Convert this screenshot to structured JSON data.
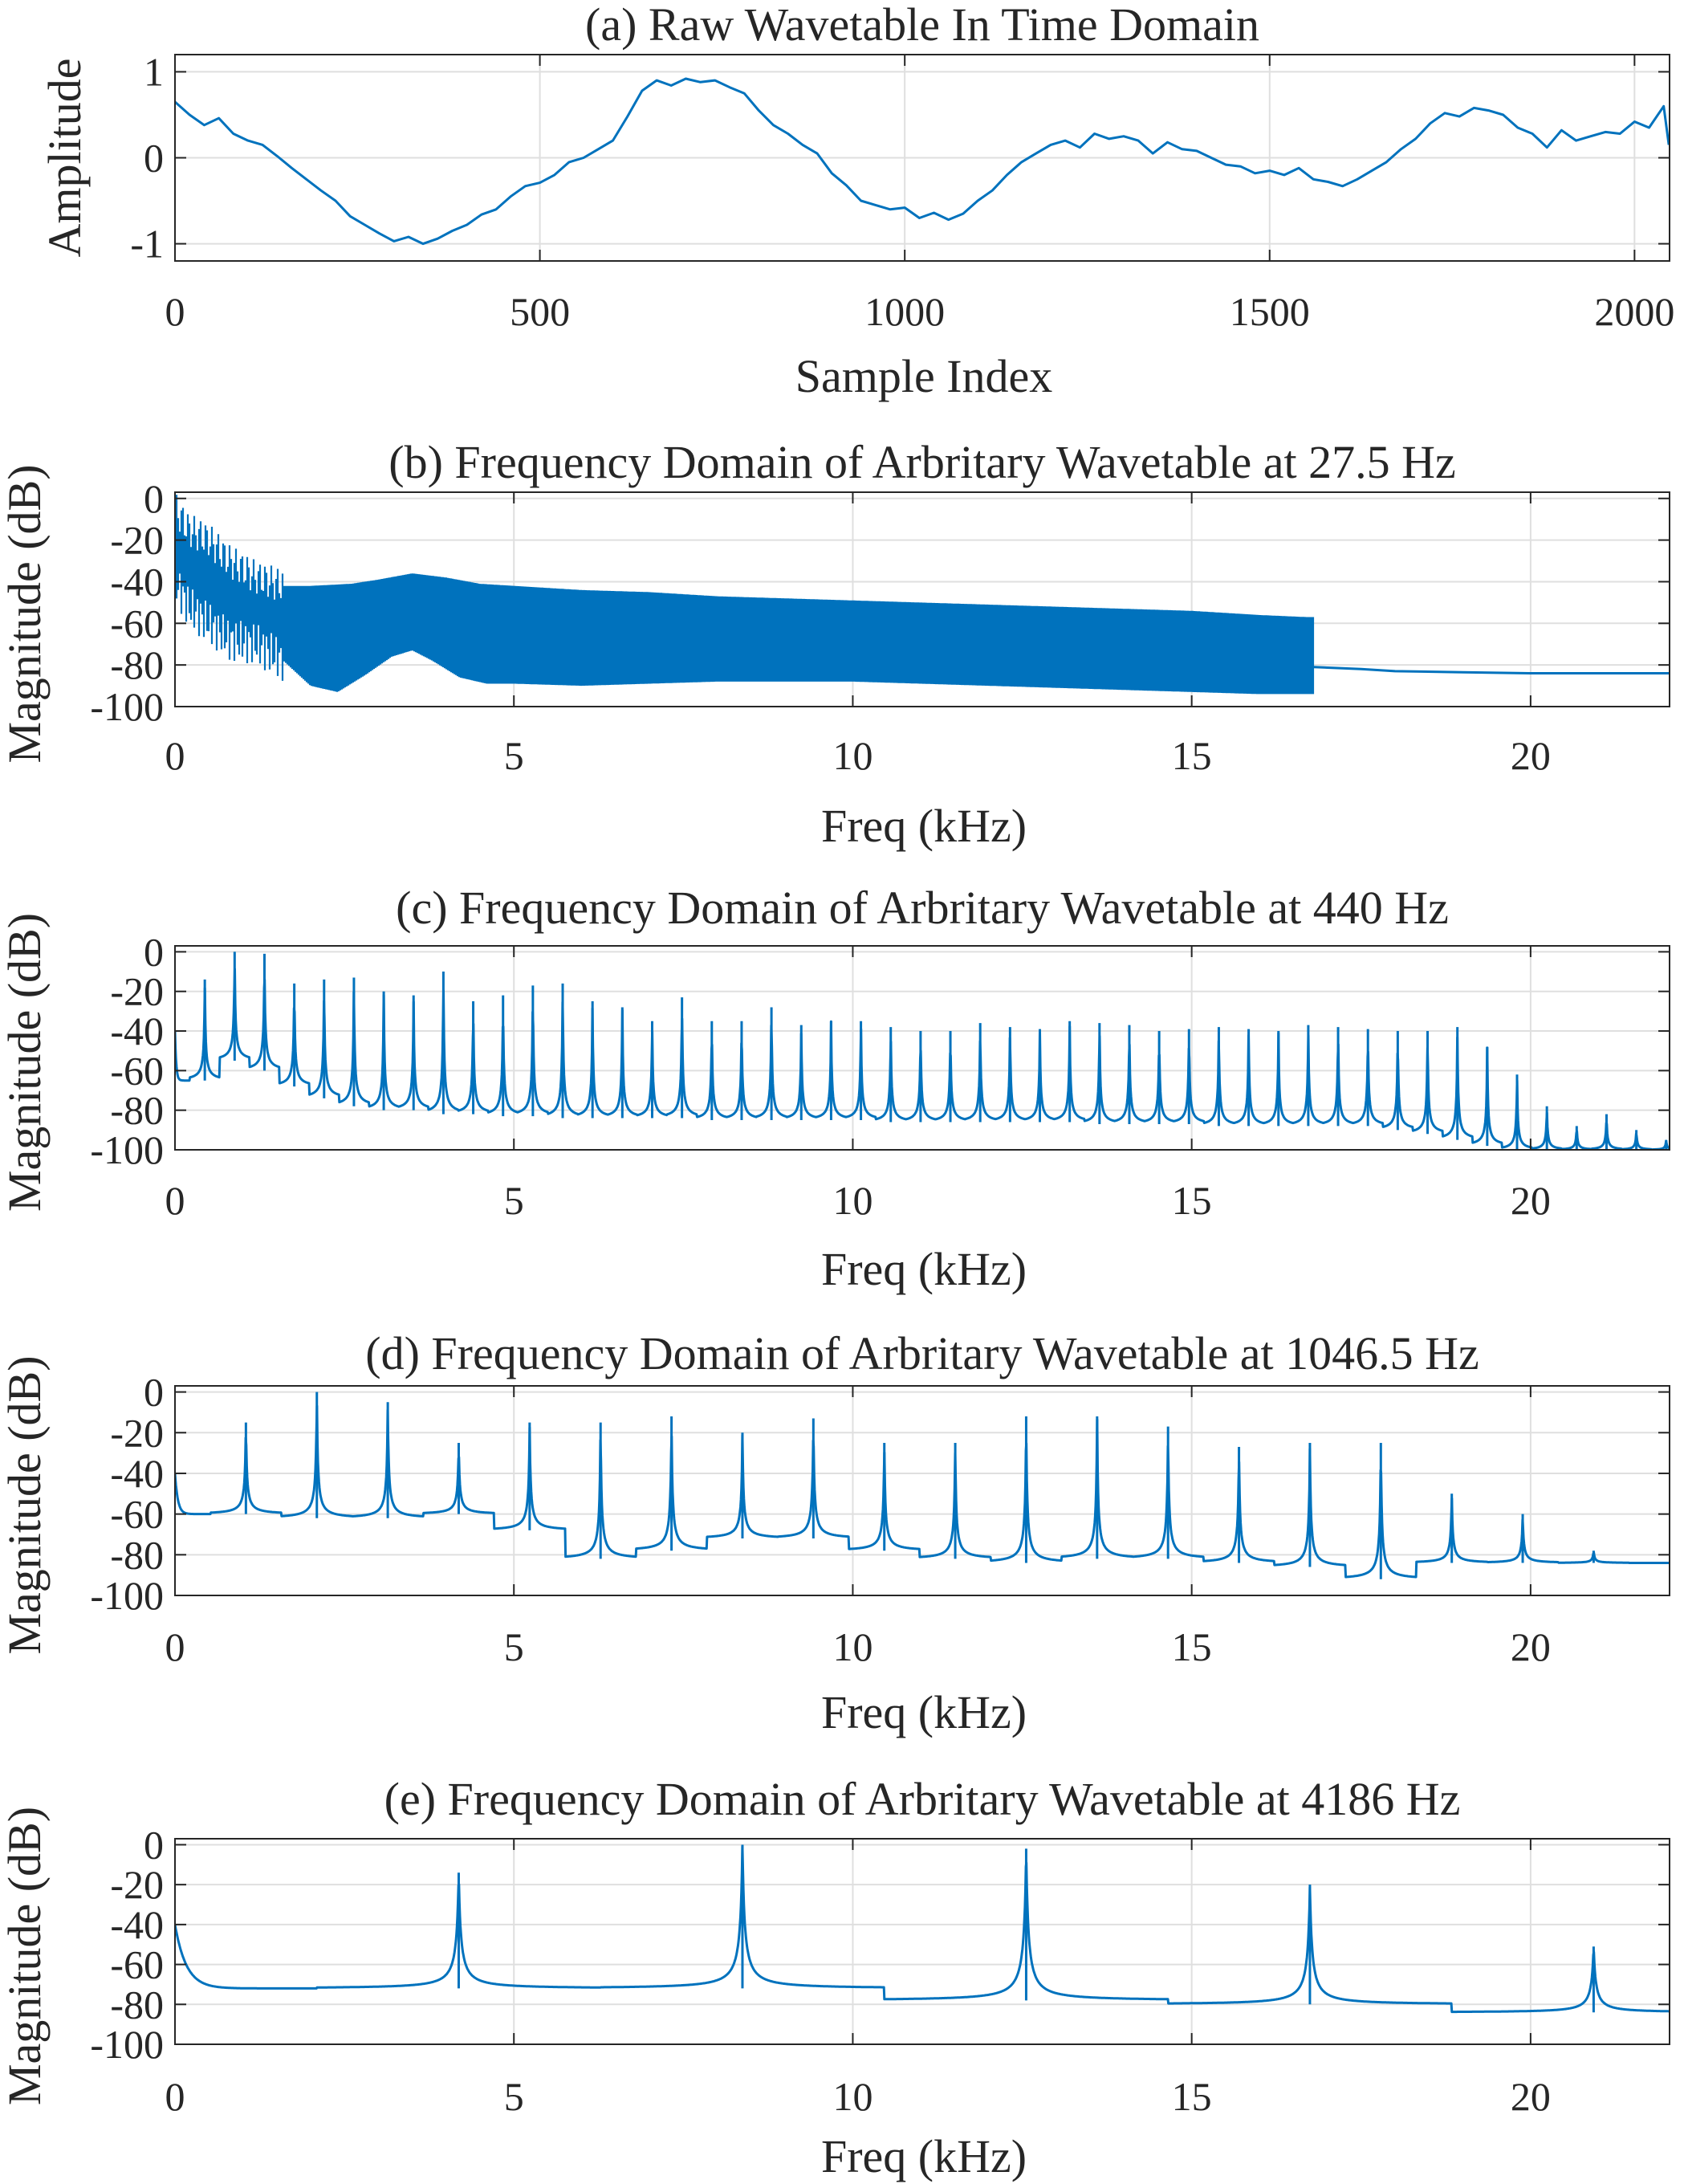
{
  "colors": {
    "series": "#0072BD",
    "axes": "#262626",
    "grid": "#dfdfdf"
  },
  "chart_data": [
    {
      "id": "a",
      "type": "line",
      "title": "(a) Raw Wavetable In Time Domain",
      "xlabel": "Sample Index",
      "ylabel": "Amplitude",
      "xlim": [
        0,
        2048
      ],
      "ylim": [
        -1.2,
        1.2
      ],
      "xticks": [
        0,
        500,
        1000,
        1500,
        2000
      ],
      "yticks": [
        -1,
        0,
        1
      ],
      "ytick_labels": [
        "-1",
        "0",
        "1"
      ],
      "grid": true,
      "x": [
        0,
        20,
        40,
        60,
        80,
        100,
        120,
        140,
        160,
        180,
        200,
        220,
        240,
        260,
        280,
        300,
        320,
        340,
        360,
        380,
        400,
        420,
        440,
        460,
        480,
        500,
        520,
        540,
        560,
        580,
        600,
        620,
        640,
        660,
        680,
        700,
        720,
        740,
        760,
        780,
        800,
        820,
        840,
        860,
        880,
        900,
        920,
        940,
        960,
        980,
        1000,
        1020,
        1040,
        1060,
        1080,
        1100,
        1120,
        1140,
        1160,
        1180,
        1200,
        1220,
        1240,
        1260,
        1280,
        1300,
        1320,
        1340,
        1360,
        1380,
        1400,
        1420,
        1440,
        1460,
        1480,
        1500,
        1520,
        1540,
        1560,
        1580,
        1600,
        1620,
        1640,
        1660,
        1680,
        1700,
        1720,
        1740,
        1760,
        1780,
        1800,
        1820,
        1840,
        1860,
        1880,
        1900,
        1920,
        1940,
        1960,
        1980,
        2000,
        2020,
        2040,
        2047
      ],
      "y": [
        0.65,
        0.5,
        0.38,
        0.46,
        0.28,
        0.2,
        0.15,
        0.02,
        -0.12,
        -0.25,
        -0.38,
        -0.5,
        -0.68,
        -0.78,
        -0.88,
        -0.97,
        -0.92,
        -1.0,
        -0.94,
        -0.85,
        -0.78,
        -0.66,
        -0.6,
        -0.45,
        -0.33,
        -0.29,
        -0.2,
        -0.05,
        0.0,
        0.1,
        0.2,
        0.48,
        0.78,
        0.9,
        0.84,
        0.92,
        0.88,
        0.9,
        0.82,
        0.75,
        0.55,
        0.38,
        0.28,
        0.15,
        0.05,
        -0.18,
        -0.32,
        -0.5,
        -0.55,
        -0.6,
        -0.58,
        -0.7,
        -0.64,
        -0.72,
        -0.65,
        -0.5,
        -0.38,
        -0.2,
        -0.05,
        0.05,
        0.15,
        0.2,
        0.12,
        0.28,
        0.22,
        0.25,
        0.2,
        0.05,
        0.18,
        0.1,
        0.08,
        0.0,
        -0.08,
        -0.1,
        -0.18,
        -0.15,
        -0.2,
        -0.12,
        -0.25,
        -0.28,
        -0.33,
        -0.25,
        -0.15,
        -0.05,
        0.1,
        0.22,
        0.4,
        0.52,
        0.48,
        0.58,
        0.55,
        0.5,
        0.35,
        0.28,
        0.12,
        0.32,
        0.2,
        0.25,
        0.3,
        0.28,
        0.42,
        0.35,
        0.6,
        0.15
      ]
    },
    {
      "id": "b",
      "type": "line",
      "title": "(b) Frequency Domain of Arbritary Wavetable at 27.5 Hz",
      "xlabel": "Freq (kHz)",
      "ylabel": "Magnitude (dB)",
      "xlim": [
        0,
        22.05
      ],
      "ylim": [
        -100,
        3
      ],
      "xticks": [
        0,
        5,
        10,
        15,
        20
      ],
      "yticks": [
        0,
        -20,
        -40,
        -60,
        -80,
        -100
      ],
      "grid": true,
      "fundamental_hz": 27.5,
      "harmonic_limit_khz": 16.8,
      "upper_envelope": {
        "x": [
          0,
          0.2,
          0.5,
          0.8,
          1.2,
          1.6,
          2.0,
          2.6,
          3.0,
          3.5,
          4.0,
          4.5,
          5.0,
          6,
          7,
          8,
          9,
          10,
          11,
          12,
          13,
          14,
          15,
          16,
          16.7
        ],
        "y": [
          -5,
          -15,
          -20,
          -30,
          -38,
          -42,
          -42,
          -41,
          -39,
          -36,
          -38,
          -41,
          -42,
          -44,
          -45,
          -47,
          -48,
          -49,
          -50,
          -51,
          -52,
          -53,
          -54,
          -56,
          -57
        ]
      },
      "lower_envelope": {
        "x": [
          0,
          0.2,
          0.5,
          0.8,
          1.2,
          1.6,
          2.0,
          2.4,
          2.8,
          3.2,
          3.5,
          3.8,
          4.2,
          4.6,
          5.0,
          6,
          7,
          8,
          9,
          10,
          11,
          12,
          13,
          14,
          15,
          16,
          16.7
        ],
        "y": [
          -40,
          -52,
          -60,
          -68,
          -70,
          -78,
          -90,
          -93,
          -85,
          -76,
          -73,
          -78,
          -86,
          -89,
          -89,
          -90,
          -89,
          -88,
          -88,
          -88,
          -89,
          -90,
          -91,
          -92,
          -93,
          -94,
          -94
        ]
      },
      "noise_floor": {
        "x": [
          16.8,
          17.5,
          18,
          19,
          20,
          21,
          22.05
        ],
        "y": [
          -81,
          -82,
          -83,
          -83.5,
          -84,
          -84,
          -84
        ]
      }
    },
    {
      "id": "c",
      "type": "line",
      "title": "(c) Frequency Domain of Arbritary Wavetable at 440 Hz",
      "xlabel": "Freq (kHz)",
      "ylabel": "Magnitude (dB)",
      "xlim": [
        0,
        22.05
      ],
      "ylim": [
        -100,
        3
      ],
      "xticks": [
        0,
        5,
        10,
        15,
        20
      ],
      "yticks": [
        0,
        -20,
        -40,
        -60,
        -80,
        -100
      ],
      "grid": true,
      "fundamental_hz": 440,
      "harmonic_peaks_db": [
        -14,
        0,
        -1,
        -16,
        -14,
        -13,
        -20,
        -22,
        -10,
        -25,
        -22,
        -17,
        -16,
        -25,
        -28,
        -35,
        -23,
        -35,
        -35,
        -28,
        -37,
        -35,
        -35,
        -38,
        -40,
        -40,
        -36,
        -38,
        -39,
        -35,
        -36,
        -37,
        -40,
        -39,
        -38,
        -39,
        -40,
        -37,
        -38,
        -39,
        -40,
        -40,
        -38,
        -48,
        -62,
        -78,
        -88,
        -82,
        -90,
        -95
      ],
      "floor_db": [
        -65,
        -55,
        -60,
        -68,
        -74,
        -78,
        -80,
        -80,
        -82,
        -82,
        -83,
        -83,
        -84,
        -84,
        -84,
        -84,
        -84,
        -85,
        -85,
        -85,
        -85,
        -85,
        -85,
        -86,
        -86,
        -86,
        -86,
        -86,
        -86,
        -86,
        -87,
        -87,
        -87,
        -87,
        -88,
        -88,
        -88,
        -88,
        -88,
        -88,
        -90,
        -92,
        -95,
        -98,
        -100,
        -100,
        -100,
        -100,
        -100,
        -100
      ]
    },
    {
      "id": "d",
      "type": "line",
      "title": "(d) Frequency Domain of Arbritary Wavetable at 1046.5 Hz",
      "xlabel": "Freq (kHz)",
      "ylabel": "Magnitude (dB)",
      "xlim": [
        0,
        22.05
      ],
      "ylim": [
        -100,
        3
      ],
      "xticks": [
        0,
        5,
        10,
        15,
        20
      ],
      "yticks": [
        0,
        -20,
        -40,
        -60,
        -80,
        -100
      ],
      "grid": true,
      "fundamental_hz": 1046.5,
      "harmonic_peaks_db": [
        -15,
        0,
        -5,
        -25,
        -15,
        -15,
        -12,
        -20,
        -13,
        -25,
        -25,
        -12,
        -12,
        -17,
        -27,
        -25,
        -25,
        -50,
        -60,
        -78
      ],
      "floor_db": [
        -60,
        -62,
        -62,
        -60,
        -68,
        -82,
        -78,
        -72,
        -72,
        -78,
        -82,
        -84,
        -82,
        -82,
        -84,
        -86,
        -92,
        -84,
        -84,
        -84
      ]
    },
    {
      "id": "e",
      "type": "line",
      "title": "(e) Frequency Domain of Arbritary Wavetable at 4186 Hz",
      "xlabel": "Freq (kHz)",
      "ylabel": "Magnitude (dB)",
      "xlim": [
        0,
        22.05
      ],
      "ylim": [
        -100,
        3
      ],
      "xticks": [
        0,
        5,
        10,
        15,
        20
      ],
      "yticks": [
        0,
        -20,
        -40,
        -60,
        -80,
        -100
      ],
      "grid": true,
      "fundamental_hz": 4186,
      "harmonic_peaks_db": [
        -14,
        0,
        -2,
        -20,
        -51
      ],
      "floor_db": [
        -72,
        -72,
        -78,
        -80,
        -84
      ]
    }
  ]
}
